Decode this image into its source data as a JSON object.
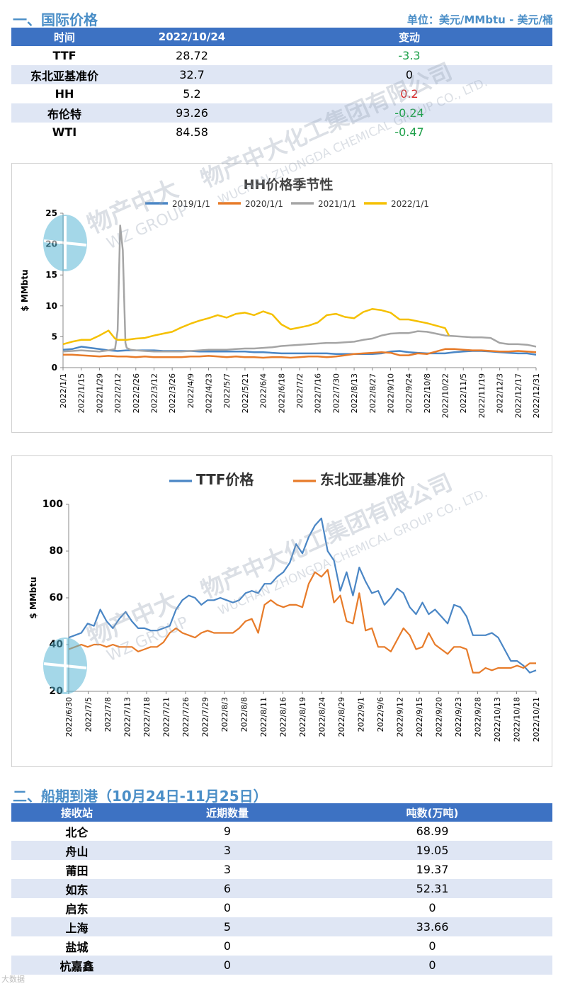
{
  "sections": {
    "intl_title": "一、国际价格",
    "unit_note": "单位：美元/MMbtu - 美元/桶",
    "shipping_title": "二、船期到港（10月24日-11月25日）"
  },
  "price_table": {
    "headers": [
      "时间",
      "2022/10/24",
      "变动"
    ],
    "rows": [
      {
        "name": "TTF",
        "value": "28.72",
        "change": "-3.3",
        "dir": "neg"
      },
      {
        "name": "东北亚基准价",
        "value": "32.7",
        "change": "0",
        "dir": "zero"
      },
      {
        "name": "HH",
        "value": "5.2",
        "change": "0.2",
        "dir": "pos"
      },
      {
        "name": "布伦特",
        "value": "93.26",
        "change": "-0.24",
        "dir": "neg"
      },
      {
        "name": "WTI",
        "value": "84.58",
        "change": "-0.47",
        "dir": "neg"
      }
    ]
  },
  "chart_data": [
    {
      "type": "line",
      "title": "HH价格季节性",
      "ylabel": "$ MMbtu",
      "xlabel": "",
      "ylim": [
        0,
        25
      ],
      "yticks": [
        0,
        5,
        10,
        15,
        20,
        25
      ],
      "x_tick_labels": [
        "2022/1/1",
        "2022/1/15",
        "2022/1/29",
        "2022/2/12",
        "2022/2/26",
        "2022/3/12",
        "2022/3/26",
        "2022/4/9",
        "2022/4/23",
        "2022/5/7",
        "2022/5/21",
        "2022/6/4",
        "2022/6/18",
        "2022/7/2",
        "2022/7/16",
        "2022/7/30",
        "2022/8/13",
        "2022/8/27",
        "2022/9/10",
        "2022/9/24",
        "2022/10/8",
        "2022/10/22",
        "2022/11/5",
        "2022/11/19",
        "2022/12/3",
        "2022/12/17",
        "2022/12/31"
      ],
      "x_domain_days": [
        0,
        364
      ],
      "legend": "top",
      "series": [
        {
          "name": "2019/1/1",
          "color": "#4a86c5",
          "x": [
            0,
            7,
            14,
            21,
            28,
            35,
            42,
            49,
            56,
            63,
            70,
            77,
            84,
            91,
            98,
            105,
            112,
            119,
            126,
            133,
            140,
            147,
            154,
            161,
            168,
            175,
            182,
            189,
            196,
            203,
            210,
            217,
            224,
            231,
            238,
            245,
            252,
            259,
            266,
            273,
            280,
            287,
            294,
            301,
            308,
            315,
            322,
            329,
            336,
            343,
            350,
            357,
            364
          ],
          "values": [
            2.9,
            3.0,
            3.4,
            3.2,
            3.0,
            2.8,
            2.7,
            2.8,
            2.8,
            2.8,
            2.8,
            2.7,
            2.7,
            2.7,
            2.7,
            2.6,
            2.6,
            2.6,
            2.6,
            2.6,
            2.6,
            2.5,
            2.5,
            2.4,
            2.3,
            2.3,
            2.3,
            2.3,
            2.3,
            2.3,
            2.2,
            2.2,
            2.2,
            2.2,
            2.2,
            2.3,
            2.6,
            2.7,
            2.5,
            2.4,
            2.3,
            2.3,
            2.3,
            2.5,
            2.6,
            2.7,
            2.7,
            2.6,
            2.5,
            2.4,
            2.3,
            2.3,
            2.1
          ]
        },
        {
          "name": "2020/1/1",
          "color": "#e77b29",
          "x": [
            0,
            7,
            14,
            21,
            28,
            35,
            42,
            49,
            56,
            63,
            70,
            77,
            84,
            91,
            98,
            105,
            112,
            119,
            126,
            133,
            140,
            147,
            154,
            161,
            168,
            175,
            182,
            189,
            196,
            203,
            210,
            217,
            224,
            231,
            238,
            245,
            252,
            259,
            266,
            273,
            280,
            287,
            294,
            301,
            308,
            315,
            322,
            329,
            336,
            343,
            350,
            357,
            364
          ],
          "values": [
            2.1,
            2.1,
            2.0,
            1.9,
            1.8,
            1.9,
            1.8,
            1.8,
            1.7,
            1.8,
            1.7,
            1.7,
            1.7,
            1.7,
            1.8,
            1.8,
            1.9,
            1.8,
            1.7,
            1.8,
            1.7,
            1.7,
            1.6,
            1.7,
            1.7,
            1.6,
            1.7,
            1.8,
            1.8,
            1.7,
            1.8,
            2.0,
            2.2,
            2.3,
            2.4,
            2.5,
            2.4,
            2.0,
            2.0,
            2.3,
            2.2,
            2.6,
            3.0,
            3.0,
            2.9,
            2.8,
            2.8,
            2.7,
            2.6,
            2.6,
            2.7,
            2.6,
            2.5
          ]
        },
        {
          "name": "2021/1/1",
          "color": "#a5a5a5",
          "x": [
            0,
            7,
            14,
            21,
            28,
            35,
            40,
            42,
            44,
            46,
            48,
            49,
            52,
            56,
            63,
            70,
            77,
            84,
            91,
            98,
            105,
            112,
            119,
            126,
            133,
            140,
            147,
            154,
            161,
            168,
            175,
            182,
            189,
            196,
            203,
            210,
            217,
            224,
            231,
            238,
            245,
            252,
            259,
            266,
            273,
            280,
            287,
            294,
            301,
            308,
            315,
            322,
            329,
            336,
            343,
            350,
            357,
            364
          ],
          "values": [
            2.6,
            2.7,
            2.8,
            2.7,
            2.6,
            2.8,
            3.0,
            6.0,
            23.0,
            19.0,
            4.0,
            3.2,
            2.9,
            2.8,
            2.7,
            2.6,
            2.6,
            2.6,
            2.6,
            2.7,
            2.8,
            2.9,
            2.9,
            2.9,
            3.0,
            3.1,
            3.1,
            3.2,
            3.3,
            3.5,
            3.6,
            3.7,
            3.8,
            3.9,
            4.0,
            4.0,
            4.1,
            4.2,
            4.5,
            4.7,
            5.2,
            5.5,
            5.6,
            5.6,
            5.9,
            5.8,
            5.5,
            5.2,
            5.1,
            5.0,
            4.9,
            4.9,
            4.8,
            4.0,
            3.8,
            3.8,
            3.7,
            3.4
          ]
        },
        {
          "name": "2022/1/1",
          "color": "#f5c001",
          "x": [
            0,
            7,
            14,
            21,
            28,
            35,
            40,
            42,
            49,
            56,
            63,
            70,
            77,
            84,
            91,
            98,
            105,
            112,
            119,
            126,
            133,
            140,
            147,
            154,
            161,
            168,
            175,
            182,
            189,
            196,
            203,
            210,
            217,
            224,
            231,
            238,
            245,
            252,
            259,
            266,
            273,
            280,
            287,
            294,
            297
          ],
          "values": [
            3.8,
            4.2,
            4.5,
            4.5,
            5.2,
            6.0,
            4.7,
            4.5,
            4.5,
            4.7,
            4.8,
            5.2,
            5.5,
            5.8,
            6.5,
            7.1,
            7.6,
            8.0,
            8.5,
            8.1,
            8.7,
            8.9,
            8.5,
            9.1,
            8.6,
            7.0,
            6.2,
            6.5,
            6.8,
            7.3,
            8.5,
            8.7,
            8.2,
            8.0,
            9.0,
            9.5,
            9.3,
            8.9,
            7.8,
            7.8,
            7.5,
            7.2,
            6.8,
            6.4,
            5.2
          ]
        }
      ]
    },
    {
      "type": "line",
      "title": "",
      "ylabel": "$ MMbtu",
      "xlabel": "",
      "ylim": [
        20,
        100
      ],
      "yticks": [
        20,
        40,
        60,
        80,
        100
      ],
      "x_tick_labels": [
        "2022/6/30",
        "2022/7/5",
        "2022/7/8",
        "2022/7/13",
        "2022/7/18",
        "2022/7/21",
        "2022/7/26",
        "2022/7/29",
        "2022/8/3",
        "2022/8/8",
        "2022/8/11",
        "2022/8/16",
        "2022/8/19",
        "2022/8/24",
        "2022/8/29",
        "2022/9/1",
        "2022/9/6",
        "2022/9/12",
        "2022/9/15",
        "2022/9/20",
        "2022/9/23",
        "2022/9/28",
        "2022/10/13",
        "2022/10/18",
        "2022/10/21"
      ],
      "legend": "top",
      "series": [
        {
          "name": "TTF价格",
          "color": "#4a86c5",
          "values": [
            43,
            44,
            45,
            49,
            48,
            55,
            50,
            47,
            51,
            54,
            50,
            47,
            47,
            46,
            46,
            47,
            48,
            55,
            59,
            61,
            60,
            57,
            59,
            59,
            60,
            59,
            58,
            59,
            62,
            63,
            62,
            66,
            66,
            69,
            71,
            75,
            83,
            79,
            86,
            91,
            94,
            80,
            76,
            63,
            71,
            61,
            73,
            67,
            62,
            63,
            57,
            60,
            64,
            62,
            56,
            53,
            58,
            53,
            55,
            52,
            49,
            57,
            56,
            52,
            44,
            44,
            44,
            45,
            43,
            38,
            33,
            33,
            31,
            28,
            29
          ]
        },
        {
          "name": "东北亚基准价",
          "color": "#e77b29",
          "values": [
            38,
            39,
            40,
            39,
            40,
            40,
            39,
            40,
            39,
            39,
            39,
            37,
            38,
            39,
            39,
            41,
            45,
            47,
            45,
            44,
            43,
            45,
            46,
            45,
            45,
            45,
            45,
            47,
            50,
            51,
            45,
            57,
            59,
            57,
            56,
            57,
            57,
            56,
            66,
            71,
            69,
            72,
            58,
            61,
            50,
            49,
            62,
            46,
            47,
            39,
            39,
            37,
            42,
            47,
            44,
            38,
            39,
            45,
            40,
            38,
            36,
            39,
            39,
            38,
            28,
            28,
            30,
            29,
            30,
            30,
            30,
            31,
            30,
            32,
            32
          ]
        }
      ]
    }
  ],
  "shipping_table": {
    "headers": [
      "接收站",
      "近期数量",
      "吨数(万吨)"
    ],
    "rows": [
      {
        "name": "北仑",
        "count": "9",
        "tons": "68.99"
      },
      {
        "name": "舟山",
        "count": "3",
        "tons": "19.05"
      },
      {
        "name": "莆田",
        "count": "3",
        "tons": "19.37"
      },
      {
        "name": "如东",
        "count": "6",
        "tons": "52.31"
      },
      {
        "name": "启东",
        "count": "0",
        "tons": "0"
      },
      {
        "name": "上海",
        "count": "5",
        "tons": "33.66"
      },
      {
        "name": "盐城",
        "count": "0",
        "tons": "0"
      },
      {
        "name": "杭嘉鑫",
        "count": "0",
        "tons": "0"
      }
    ]
  },
  "watermark": {
    "company_cn": "物产中大化工集团有限公司",
    "company_en": "WUCHAN ZHONGDA CHEMICAL GROUP CO., LTD.",
    "brand_cn": "物产中大",
    "brand_en": "WZ GROUP"
  },
  "footer": {
    "logo_text": "大数据"
  }
}
